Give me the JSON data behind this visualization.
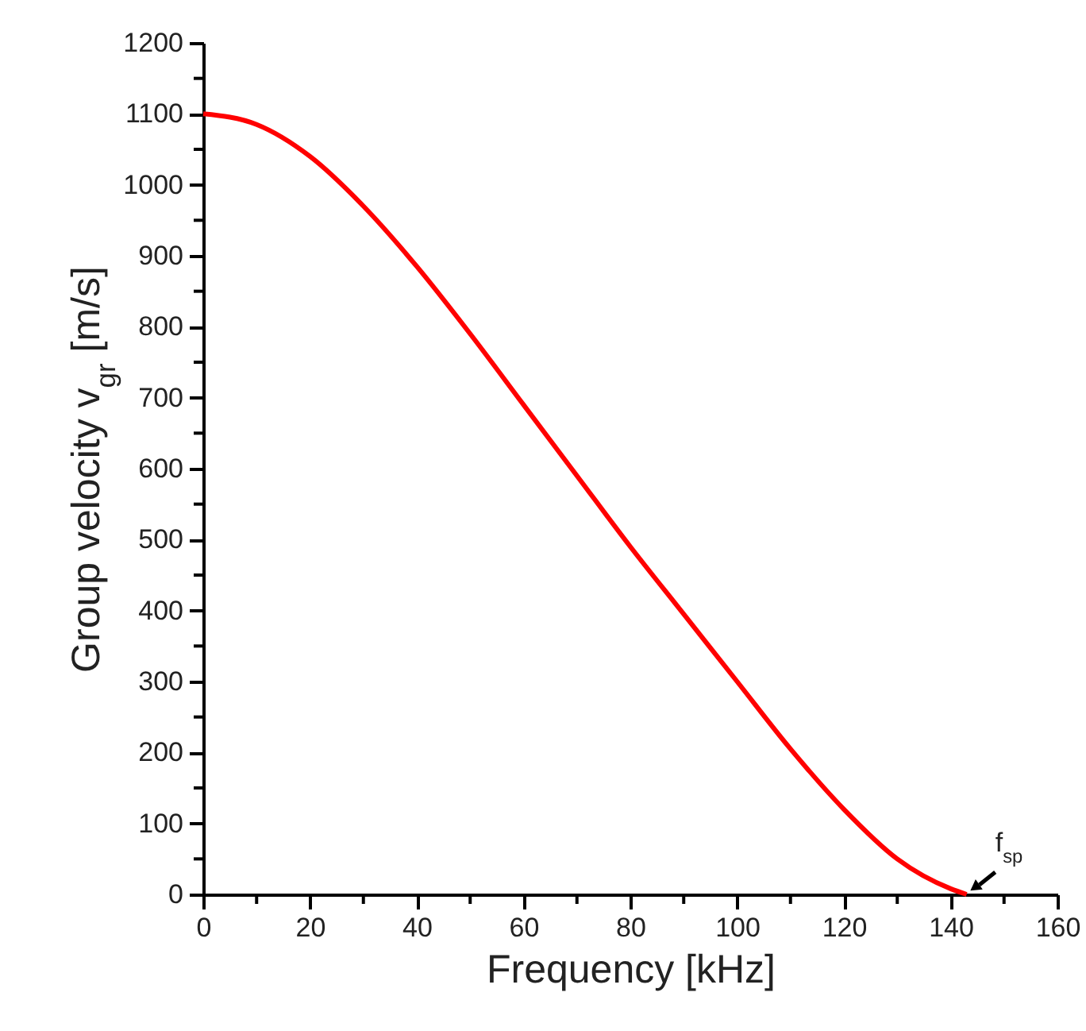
{
  "chart_data": {
    "type": "line",
    "xlabel": "Frequency [kHz]",
    "ylabel": "Group velocity v$_{gr}$ [m/s]",
    "x": [
      0,
      10,
      20,
      30,
      40,
      50,
      60,
      70,
      80,
      90,
      100,
      110,
      120,
      130,
      140,
      143
    ],
    "series": [
      {
        "color": "#ff0000",
        "values": [
          1100,
          1085,
          1040,
          970,
          885,
          790,
          690,
          590,
          490,
          395,
          300,
          205,
          120,
          50,
          8,
          0
        ]
      }
    ],
    "xlim": [
      0,
      160
    ],
    "xticks": [
      0,
      {
        "value": 10,
        "label": null
      },
      20,
      {
        "value": 30,
        "label": null
      },
      40,
      {
        "value": 50,
        "label": null
      },
      60,
      {
        "value": 70,
        "label": null
      },
      80,
      {
        "value": 90,
        "label": null
      },
      100,
      {
        "value": 110,
        "label": null
      },
      120,
      {
        "value": 130,
        "label": null
      },
      140,
      {
        "value": 150,
        "label": null
      },
      160
    ],
    "ylim": [
      0,
      1200
    ],
    "yticks": [
      0,
      {
        "value": 50,
        "label": null
      },
      100,
      {
        "value": 150,
        "label": null
      },
      200,
      {
        "value": 250,
        "label": null
      },
      300,
      {
        "value": 350,
        "label": null
      },
      400,
      {
        "value": 450,
        "label": null
      },
      500,
      {
        "value": 550,
        "label": null
      },
      600,
      {
        "value": 650,
        "label": null
      },
      700,
      {
        "value": 750,
        "label": null
      },
      800,
      {
        "value": 850,
        "label": null
      },
      900,
      {
        "value": 950,
        "label": null
      },
      1000,
      {
        "value": 1050,
        "label": null
      },
      1100,
      {
        "value": 1150,
        "label": null
      },
      1200
    ],
    "annotations": [
      {
        "text": "f$_{sp}$",
        "x": 143,
        "y": 0
      }
    ],
    "grid": false,
    "marker": "none",
    "line_style": "solid"
  }
}
